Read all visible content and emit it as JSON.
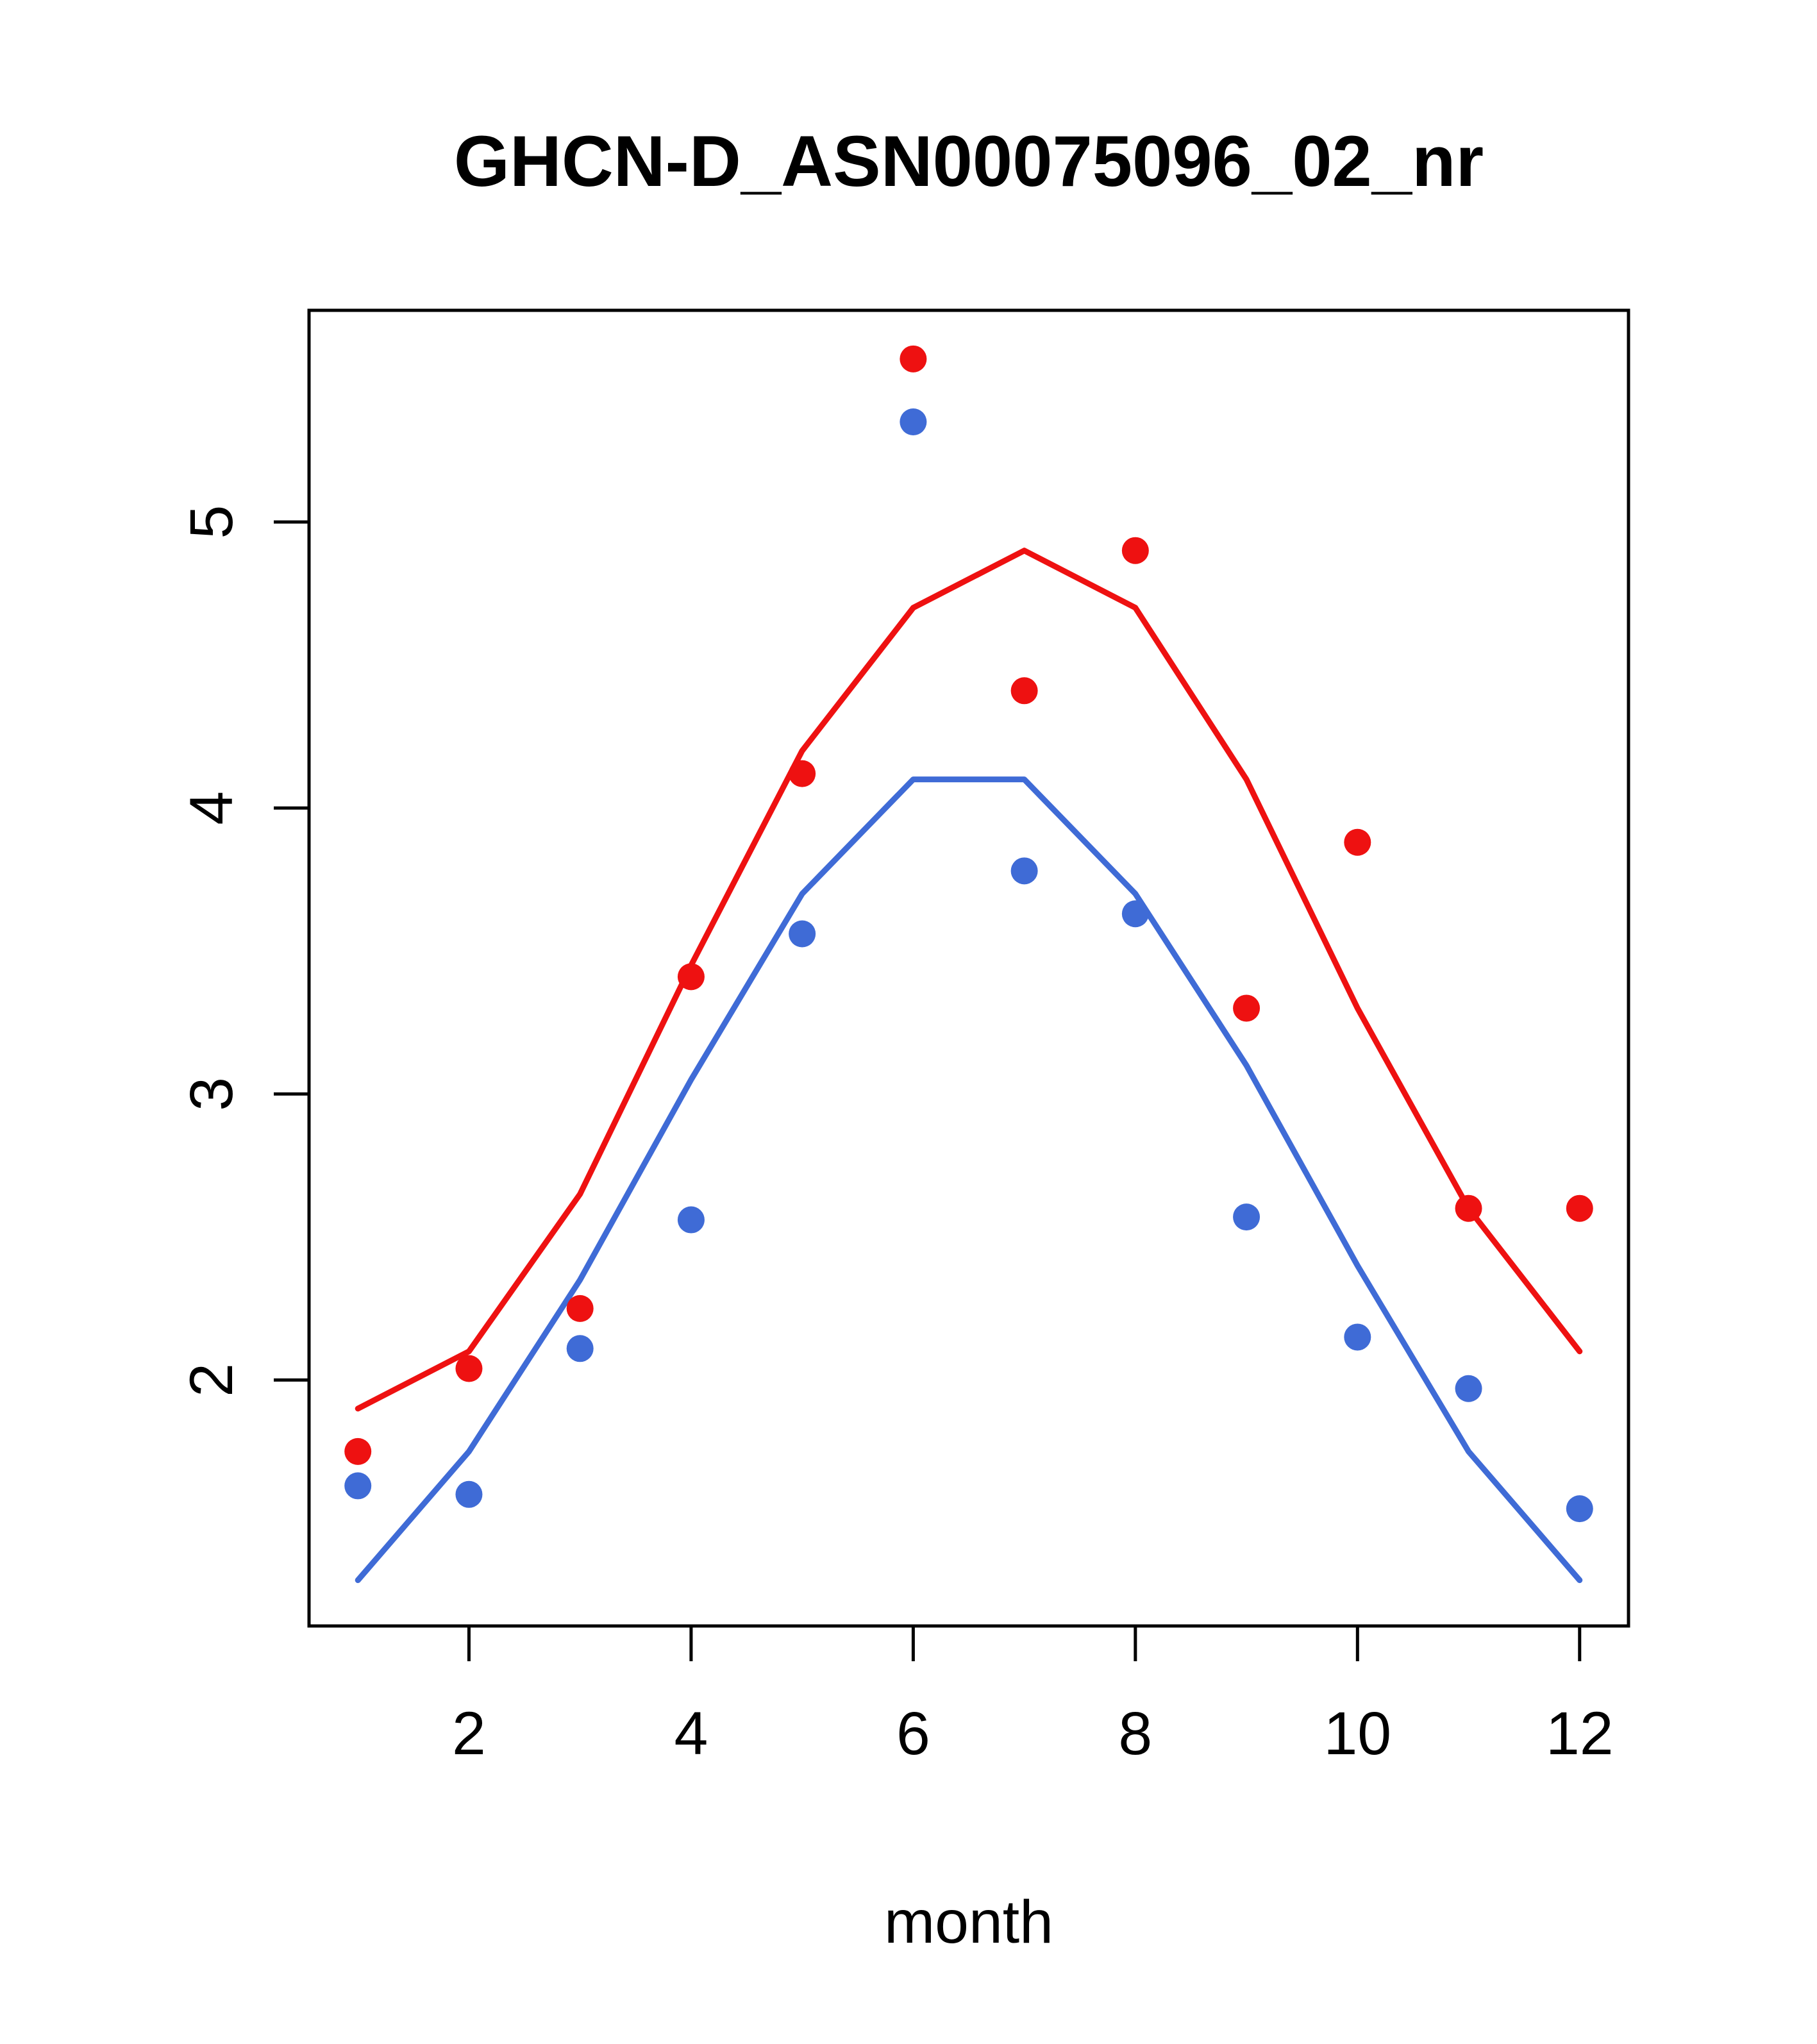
{
  "chart_data": {
    "type": "scatter",
    "title": "GHCN-D_ASN00075096_02_nr",
    "xlabel": "month",
    "ylabel": "",
    "x": [
      1,
      2,
      3,
      4,
      5,
      6,
      7,
      8,
      9,
      10,
      11,
      12
    ],
    "xlim": [
      0.56,
      12.44
    ],
    "ylim": [
      1.14,
      5.74
    ],
    "xticks": [
      2,
      4,
      6,
      8,
      10,
      12
    ],
    "yticks": [
      2,
      3,
      4,
      5
    ],
    "grid": false,
    "legend": null,
    "colors": {
      "red": "#ee1111",
      "blue": "#3f6bd6",
      "axis": "#000000",
      "background": "#ffffff"
    },
    "series": [
      {
        "name": "red-line",
        "kind": "line",
        "color": "#ee1111",
        "values": [
          1.9,
          2.1,
          2.65,
          3.45,
          4.2,
          4.7,
          4.9,
          4.7,
          4.1,
          3.3,
          2.6,
          2.1
        ]
      },
      {
        "name": "blue-line",
        "kind": "line",
        "color": "#3f6bd6",
        "values": [
          1.3,
          1.75,
          2.35,
          3.05,
          3.7,
          4.1,
          4.1,
          3.7,
          3.1,
          2.4,
          1.75,
          1.3
        ]
      },
      {
        "name": "red-points",
        "kind": "points",
        "color": "#ee1111",
        "values": [
          1.75,
          2.04,
          2.25,
          3.41,
          4.12,
          5.57,
          4.41,
          4.9,
          3.3,
          3.88,
          2.6,
          2.6
        ]
      },
      {
        "name": "blue-points",
        "kind": "points",
        "color": "#3f6bd6",
        "values": [
          1.63,
          1.6,
          2.11,
          2.56,
          3.56,
          5.35,
          3.78,
          3.63,
          2.57,
          2.15,
          1.97,
          1.55
        ]
      }
    ]
  }
}
